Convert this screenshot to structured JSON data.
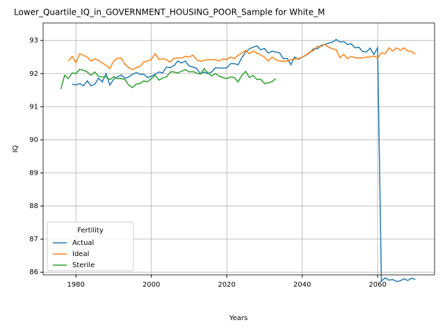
{
  "chart_data": {
    "type": "line",
    "title": "Lower_Quartile_IQ_in_GOVERNMENT_HOUSING_POOR_Sample for White_M",
    "x_label": "Years",
    "y_label": "IQ",
    "x": [
      1976,
      1977,
      1978,
      1979,
      1980,
      1981,
      1982,
      1983,
      1984,
      1985,
      1986,
      1987,
      1988,
      1989,
      1990,
      1991,
      1992,
      1993,
      1994,
      1995,
      1996,
      1997,
      1998,
      1999,
      2000,
      2001,
      2002,
      2003,
      2004,
      2005,
      2006,
      2007,
      2008,
      2009,
      2010,
      2011,
      2012,
      2013,
      2014,
      2015,
      2016,
      2017,
      2018,
      2019,
      2020,
      2021,
      2022,
      2023,
      2024,
      2025,
      2026,
      2027,
      2028,
      2029,
      2030,
      2031,
      2032,
      2033,
      2034,
      2035,
      2036,
      2037,
      2038,
      2039,
      2040,
      2041,
      2042,
      2043,
      2044,
      2045,
      2046,
      2047,
      2048,
      2049,
      2050,
      2051,
      2052,
      2053,
      2054,
      2055,
      2056,
      2057,
      2058,
      2059,
      2060,
      2061,
      2062,
      2063,
      2064,
      2065,
      2066,
      2067,
      2068,
      2069,
      2070
    ],
    "series": [
      {
        "name": "Actual",
        "color": "#1f77b4",
        "values": [
          null,
          null,
          null,
          91.68,
          91.66,
          91.7,
          91.63,
          91.78,
          91.63,
          91.68,
          91.86,
          91.75,
          92.0,
          91.65,
          91.83,
          91.9,
          91.96,
          91.86,
          91.9,
          91.98,
          92.03,
          91.98,
          91.98,
          91.88,
          91.92,
          91.98,
          92.05,
          92.02,
          92.2,
          92.18,
          92.24,
          92.38,
          92.32,
          92.38,
          92.23,
          92.2,
          92.16,
          92.0,
          92.05,
          92.0,
          92.05,
          92.18,
          92.17,
          92.17,
          92.17,
          92.3,
          92.3,
          92.27,
          92.48,
          92.65,
          92.75,
          92.8,
          92.84,
          92.72,
          92.76,
          92.62,
          92.68,
          92.65,
          92.63,
          92.45,
          92.46,
          92.27,
          92.5,
          92.43,
          92.5,
          92.55,
          92.63,
          92.75,
          92.75,
          92.85,
          92.88,
          92.92,
          92.95,
          93.03,
          92.95,
          92.97,
          92.88,
          92.9,
          92.78,
          92.8,
          92.67,
          92.65,
          92.77,
          92.58,
          92.78,
          85.73,
          85.83,
          85.76,
          85.78,
          85.72,
          85.74,
          85.8,
          85.75,
          85.82,
          85.78
        ]
      },
      {
        "name": "Ideal",
        "color": "#ff7f0e",
        "values": [
          null,
          null,
          92.38,
          92.52,
          92.33,
          92.6,
          92.55,
          92.5,
          92.38,
          92.44,
          92.4,
          92.32,
          92.25,
          92.15,
          92.38,
          92.46,
          92.47,
          92.28,
          92.18,
          92.12,
          92.18,
          92.22,
          92.35,
          92.38,
          92.43,
          92.6,
          92.43,
          92.45,
          92.42,
          92.35,
          92.46,
          92.47,
          92.47,
          92.52,
          92.5,
          92.56,
          92.42,
          92.37,
          92.4,
          92.42,
          92.42,
          92.42,
          92.38,
          92.45,
          92.42,
          92.5,
          92.45,
          92.55,
          92.62,
          92.7,
          92.6,
          92.68,
          92.62,
          92.56,
          92.5,
          92.38,
          92.5,
          92.42,
          92.38,
          92.37,
          92.38,
          92.42,
          92.45,
          92.45,
          92.5,
          92.56,
          92.65,
          92.7,
          92.82,
          92.82,
          92.88,
          92.8,
          92.75,
          92.72,
          92.48,
          92.58,
          92.45,
          92.52,
          92.48,
          92.47,
          92.47,
          92.5,
          92.5,
          92.53,
          92.47,
          92.63,
          92.6,
          92.78,
          92.68,
          92.78,
          92.7,
          92.78,
          92.68,
          92.67,
          92.58
        ]
      },
      {
        "name": "Sterile",
        "color": "#2ca02c",
        "values": [
          91.53,
          91.95,
          91.85,
          92.02,
          92.0,
          92.13,
          92.1,
          92.05,
          91.95,
          92.05,
          91.92,
          91.9,
          91.9,
          91.82,
          91.9,
          91.85,
          91.85,
          91.82,
          91.65,
          91.58,
          91.68,
          91.7,
          91.78,
          91.75,
          91.85,
          91.95,
          91.8,
          91.87,
          91.9,
          92.05,
          92.05,
          92.02,
          92.07,
          92.12,
          92.05,
          92.06,
          92.02,
          91.98,
          92.15,
          92.02,
          91.93,
          92.0,
          91.92,
          91.88,
          91.85,
          91.9,
          91.88,
          91.75,
          91.95,
          92.07,
          91.88,
          91.95,
          91.82,
          91.83,
          91.7,
          91.72,
          91.76,
          91.85,
          null,
          null,
          null,
          null,
          null,
          null,
          null,
          null,
          null,
          null,
          null,
          null,
          null,
          null,
          null,
          null,
          null,
          null,
          null,
          null,
          null,
          null,
          null,
          null,
          null,
          null,
          null,
          null,
          null,
          null,
          null,
          null,
          null,
          null,
          null,
          null,
          null
        ]
      }
    ],
    "xlim": [
      1971.3,
      2075.1
    ],
    "xticks": [
      1980,
      2000,
      2020,
      2040,
      2060
    ],
    "ylim": [
      85.92,
      93.53
    ],
    "yticks": [
      86,
      87,
      88,
      89,
      90,
      91,
      92,
      93
    ],
    "grid": true,
    "legend_title": "Fertility",
    "legend_position": "lower left"
  }
}
